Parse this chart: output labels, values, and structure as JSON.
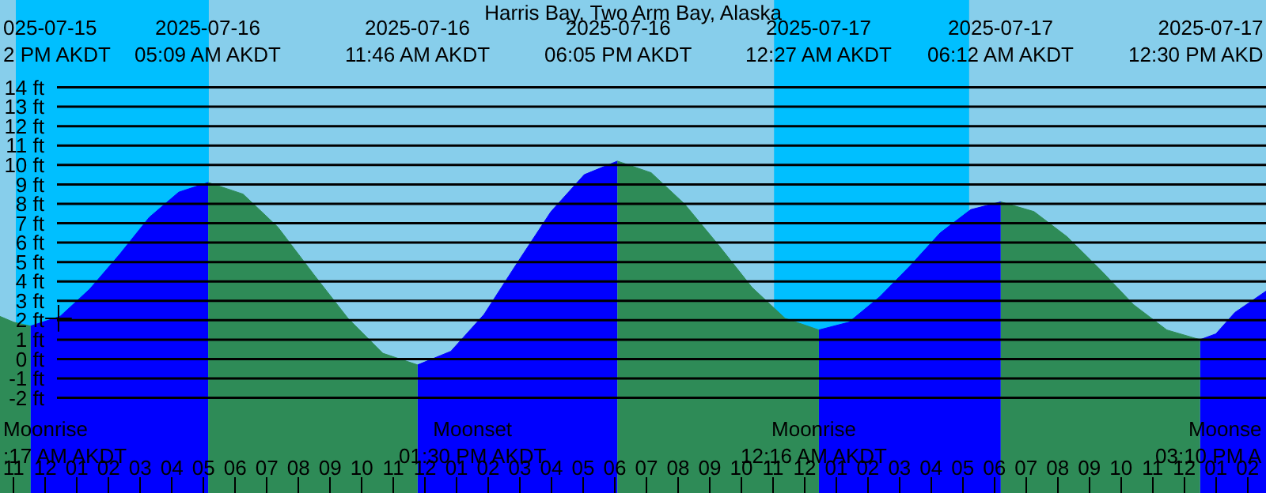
{
  "chart_data": {
    "type": "area",
    "title": "Harris Bay, Two Arm Bay, Alaska",
    "xlim": [
      "2025-07-15T22:34",
      "2025-07-17T14:35"
    ],
    "ylim": [
      -6.9,
      18.5
    ],
    "yticks": [
      {
        "value": -2,
        "label": "-2 ft"
      },
      {
        "value": -1,
        "label": "-1 ft"
      },
      {
        "value": 0,
        "label": "0 ft"
      },
      {
        "value": 1,
        "label": "1 ft"
      },
      {
        "value": 2,
        "label": "2 ft"
      },
      {
        "value": 3,
        "label": "3 ft"
      },
      {
        "value": 4,
        "label": "4 ft"
      },
      {
        "value": 5,
        "label": "5 ft"
      },
      {
        "value": 6,
        "label": "6 ft"
      },
      {
        "value": 7,
        "label": "7 ft"
      },
      {
        "value": 8,
        "label": "8 ft"
      },
      {
        "value": 9,
        "label": "9 ft"
      },
      {
        "value": 10,
        "label": "10 ft"
      },
      {
        "value": 11,
        "label": "11 ft"
      },
      {
        "value": 12,
        "label": "12 ft"
      },
      {
        "value": 13,
        "label": "13 ft"
      },
      {
        "value": 14,
        "label": "14 ft"
      }
    ],
    "xticks": [
      {
        "value": "2025-07-15T23:00",
        "label": "11"
      },
      {
        "value": "2025-07-16T00:00",
        "label": "12"
      },
      {
        "value": "2025-07-16T01:00",
        "label": "01"
      },
      {
        "value": "2025-07-16T02:00",
        "label": "02"
      },
      {
        "value": "2025-07-16T03:00",
        "label": "03"
      },
      {
        "value": "2025-07-16T04:00",
        "label": "04"
      },
      {
        "value": "2025-07-16T05:00",
        "label": "05"
      },
      {
        "value": "2025-07-16T06:00",
        "label": "06"
      },
      {
        "value": "2025-07-16T07:00",
        "label": "07"
      },
      {
        "value": "2025-07-16T08:00",
        "label": "08"
      },
      {
        "value": "2025-07-16T09:00",
        "label": "09"
      },
      {
        "value": "2025-07-16T10:00",
        "label": "10"
      },
      {
        "value": "2025-07-16T11:00",
        "label": "11"
      },
      {
        "value": "2025-07-16T12:00",
        "label": "12"
      },
      {
        "value": "2025-07-16T13:00",
        "label": "01"
      },
      {
        "value": "2025-07-16T14:00",
        "label": "02"
      },
      {
        "value": "2025-07-16T15:00",
        "label": "03"
      },
      {
        "value": "2025-07-16T16:00",
        "label": "04"
      },
      {
        "value": "2025-07-16T17:00",
        "label": "05"
      },
      {
        "value": "2025-07-16T18:00",
        "label": "06"
      },
      {
        "value": "2025-07-16T19:00",
        "label": "07"
      },
      {
        "value": "2025-07-16T20:00",
        "label": "08"
      },
      {
        "value": "2025-07-16T21:00",
        "label": "09"
      },
      {
        "value": "2025-07-16T22:00",
        "label": "10"
      },
      {
        "value": "2025-07-16T23:00",
        "label": "11"
      },
      {
        "value": "2025-07-17T00:00",
        "label": "12"
      },
      {
        "value": "2025-07-17T01:00",
        "label": "01"
      },
      {
        "value": "2025-07-17T02:00",
        "label": "02"
      },
      {
        "value": "2025-07-17T03:00",
        "label": "03"
      },
      {
        "value": "2025-07-17T04:00",
        "label": "04"
      },
      {
        "value": "2025-07-17T05:00",
        "label": "05"
      },
      {
        "value": "2025-07-17T06:00",
        "label": "06"
      },
      {
        "value": "2025-07-17T07:00",
        "label": "07"
      },
      {
        "value": "2025-07-17T08:00",
        "label": "08"
      },
      {
        "value": "2025-07-17T09:00",
        "label": "09"
      },
      {
        "value": "2025-07-17T10:00",
        "label": "10"
      },
      {
        "value": "2025-07-17T11:00",
        "label": "11"
      },
      {
        "value": "2025-07-17T12:00",
        "label": "12"
      },
      {
        "value": "2025-07-17T13:00",
        "label": "01"
      },
      {
        "value": "2025-07-17T14:00",
        "label": "02"
      }
    ],
    "grid": "y",
    "series": [
      {
        "color": "#0000ff",
        "x": [
          "2025-07-15T23:32",
          "2025-07-16T00:28",
          "2025-07-16T01:24",
          "2025-07-16T02:21",
          "2025-07-16T03:17",
          "2025-07-16T04:13",
          "2025-07-16T05:09",
          "2025-07-16T08:00",
          "2025-07-16T11:46",
          "2025-07-16T12:49",
          "2025-07-16T13:52",
          "2025-07-16T14:56",
          "2025-07-16T15:59",
          "2025-07-16T17:02",
          "2025-07-16T18:05",
          "2025-07-16T21:00",
          "2025-07-17T00:27",
          "2025-07-17T01:24",
          "2025-07-17T02:22",
          "2025-07-17T03:20",
          "2025-07-17T04:17",
          "2025-07-17T05:15",
          "2025-07-17T06:12",
          "2025-07-17T09:00",
          "2025-07-17T12:30",
          "2025-07-17T13:00",
          "2025-07-17T13:36",
          "2025-07-17T14:35"
        ],
        "values": [
          1.7,
          2.2,
          3.6,
          5.4,
          7.3,
          8.6,
          9.1,
          null,
          -0.3,
          0.4,
          2.3,
          5.0,
          7.6,
          9.5,
          10.2,
          null,
          1.5,
          1.9,
          3.2,
          4.8,
          6.5,
          7.7,
          8.1,
          null,
          1.0,
          1.3,
          2.4,
          3.5
        ]
      },
      {
        "color": "#2e8b57",
        "x": [
          "2025-07-15T22:34",
          "2025-07-15T23:00",
          "2025-07-15T23:32",
          "2025-07-16T02:00",
          "2025-07-16T05:09",
          "2025-07-16T06:15",
          "2025-07-16T07:21",
          "2025-07-16T08:28",
          "2025-07-16T09:34",
          "2025-07-16T10:40",
          "2025-07-16T11:46",
          "2025-07-16T15:00",
          "2025-07-16T18:05",
          "2025-07-16T19:09",
          "2025-07-16T20:12",
          "2025-07-16T21:16",
          "2025-07-16T22:20",
          "2025-07-16T23:23",
          "2025-07-17T00:27",
          "2025-07-17T03:00",
          "2025-07-17T06:12",
          "2025-07-17T07:15",
          "2025-07-17T08:18",
          "2025-07-17T09:21",
          "2025-07-17T10:24",
          "2025-07-17T11:27",
          "2025-07-17T12:30"
        ],
        "values": [
          2.2,
          1.9,
          1.7,
          null,
          9.1,
          8.5,
          6.8,
          4.4,
          2.1,
          0.3,
          -0.3,
          null,
          10.2,
          9.6,
          8.0,
          5.9,
          3.7,
          2.1,
          1.5,
          null,
          8.1,
          7.6,
          6.3,
          4.6,
          2.8,
          1.5,
          1.0
        ]
      },
      {
        "type": "scatter",
        "marker": "cross",
        "color": "#000000",
        "x": [
          "2025-07-16T00:25"
        ],
        "values": [
          2.1
        ]
      }
    ],
    "bands": [
      {
        "axis": "x",
        "from": "2025-07-15T23:04",
        "to": "2025-07-16T05:10",
        "color": "#00bfff"
      },
      {
        "axis": "x",
        "from": "2025-07-16T23:02",
        "to": "2025-07-17T05:12",
        "color": "#00bfff"
      }
    ],
    "annotations": [
      "025-07-15\n2 PM AKDT",
      "2025-07-16\n05:09 AM AKDT",
      "2025-07-16\n11:46 AM AKDT",
      "2025-07-16\n06:05 PM AKDT",
      "2025-07-17\n12:27 AM AKDT",
      "2025-07-17\n06:12 AM AKDT",
      "2025-07-17\n12:30 PM AKD",
      "Moonrise\n:17 AM AKDT",
      "Moonset\n01:30 PM AKDT",
      "Moonrise\n12:16 AM AKDT",
      "Moonse\n03:10 PM A"
    ]
  }
}
